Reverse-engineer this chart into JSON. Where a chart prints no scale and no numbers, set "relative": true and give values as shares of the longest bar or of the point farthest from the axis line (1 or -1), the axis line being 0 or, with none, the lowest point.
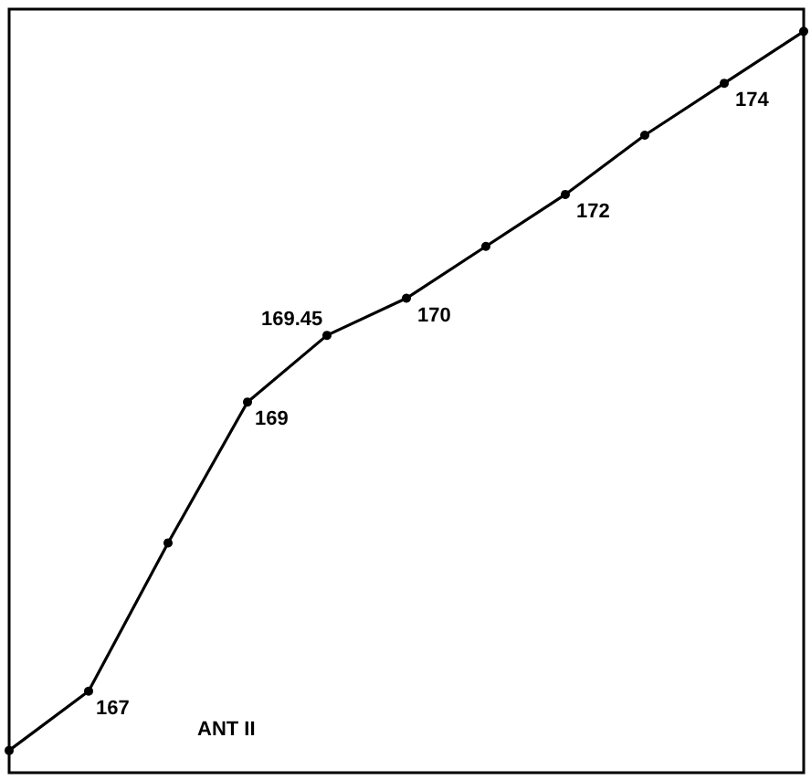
{
  "chart_data": {
    "type": "line",
    "relative": true,
    "categories": [
      null,
      null,
      null,
      null,
      null,
      null,
      null,
      null,
      null,
      null,
      null
    ],
    "series": [
      {
        "color": "#000000",
        "values": [
          0.03,
          0.11,
          0.31,
          0.5,
          0.59,
          0.64,
          0.71,
          0.78,
          0.86,
          0.93,
          1
        ]
      }
    ],
    "marker": "circle",
    "line_style": "solid",
    "grid": false,
    "annotations": [
      "ANT II",
      "167",
      "169",
      "169.45",
      "170",
      "172",
      "174"
    ]
  }
}
